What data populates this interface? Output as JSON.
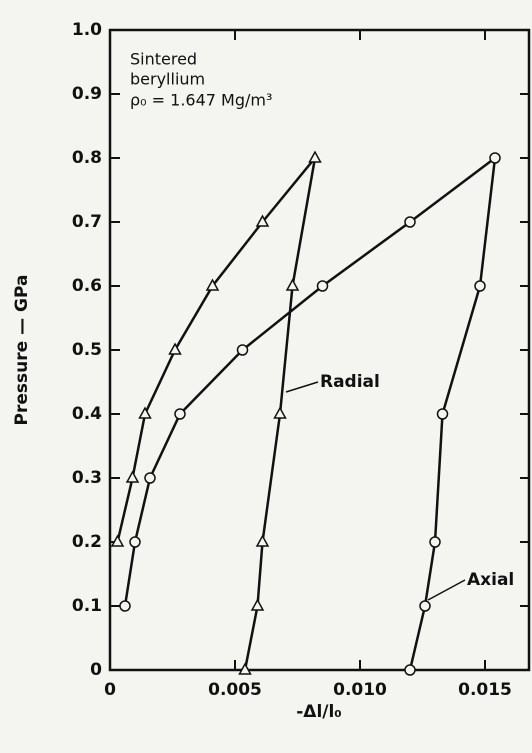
{
  "chart_data": {
    "type": "line",
    "xlabel": "-Δl/l₀",
    "ylabel": "Pressure — GPa",
    "annotations": [
      "Sintered",
      "beryllium",
      "ρ₀ = 1.647 Mg/m³"
    ],
    "xlim": [
      0,
      0.0168
    ],
    "ylim": [
      0,
      1
    ],
    "xticks": [
      0,
      0.005,
      {
        "value": 0.01,
        "label": "0.010"
      },
      0.015
    ],
    "yticks": [
      0,
      0.1,
      0.2,
      0.3,
      0.4,
      0.5,
      0.6,
      0.7,
      0.8,
      0.9,
      {
        "value": 1,
        "label": "1.0"
      }
    ],
    "series": [
      {
        "name": "Radial",
        "color": "#111111",
        "marker": "triangle",
        "x": [
          0.0003,
          0.0009,
          0.0014,
          0.0026,
          0.0041,
          0.0061,
          0.0082,
          0.0073,
          0.0068,
          0.0061,
          0.0059,
          0.0054
        ],
        "values": [
          0.2,
          0.3,
          0.4,
          0.5,
          0.6,
          0.7,
          0.8,
          0.6,
          0.4,
          0.2,
          0.1,
          0
        ]
      },
      {
        "name": "Axial",
        "color": "#111111",
        "marker": "circle",
        "x": [
          0.0006,
          0.001,
          0.0016,
          0.0028,
          0.0053,
          0.0085,
          0.012,
          0.0154,
          0.0148,
          0.0133,
          0.013,
          0.0126,
          0.012
        ],
        "values": [
          0.1,
          0.2,
          0.3,
          0.4,
          0.5,
          0.6,
          0.7,
          0.8,
          0.6,
          0.4,
          0.2,
          0.1,
          0
        ]
      }
    ]
  }
}
